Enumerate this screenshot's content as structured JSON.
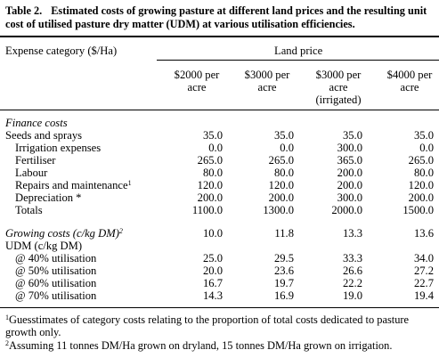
{
  "caption": {
    "number": "Table 2.",
    "text": "Estimated costs of growing pasture at different land prices and the resulting unit cost of utilised pasture dry matter (UDM) at various utilisation efficiencies."
  },
  "header": {
    "row_label": "Expense category ($/Ha)",
    "group_label": "Land price",
    "columns": [
      [
        "$2000  per",
        "acre"
      ],
      [
        "$3000  per",
        "acre"
      ],
      [
        "$3000  per",
        "acre",
        "(irrigated)"
      ],
      [
        "$4000  per",
        "acre"
      ]
    ]
  },
  "rows": [
    {
      "label": "Finance costs",
      "italic": true,
      "indent": false,
      "values": [
        "",
        "",
        "",
        ""
      ]
    },
    {
      "label": "Seeds and sprays",
      "indent": false,
      "values": [
        "35.0",
        "35.0",
        "35.0",
        "35.0"
      ]
    },
    {
      "label": "Irrigation expenses",
      "indent": true,
      "values": [
        "0.0",
        "0.0",
        "300.0",
        "0.0"
      ]
    },
    {
      "label": "Fertiliser",
      "indent": true,
      "values": [
        "265.0",
        "265.0",
        "365.0",
        "265.0"
      ]
    },
    {
      "label": "Labour",
      "indent": true,
      "values": [
        "80.0",
        "80.0",
        "200.0",
        "80.0"
      ]
    },
    {
      "label": "Repairs and maintenance",
      "sup": "1",
      "indent": true,
      "values": [
        "120.0",
        "120.0",
        "200.0",
        "120.0"
      ]
    },
    {
      "label": "Depreciation *",
      "indent": true,
      "values": [
        "200.0",
        "200.0",
        "300.0",
        "200.0"
      ]
    },
    {
      "label": "Totals",
      "indent": true,
      "values": [
        "1100.0",
        "1300.0",
        "2000.0",
        "1500.0"
      ]
    },
    {
      "label": "Growing costs  (c/kg DM)",
      "sup": "2",
      "italic": true,
      "indent": false,
      "gap": true,
      "values": [
        "10.0",
        "11.8",
        "13.3",
        "13.6"
      ]
    },
    {
      "label": "UDM (c/kg DM)",
      "indent": false,
      "values": [
        "",
        "",
        "",
        ""
      ]
    },
    {
      "label": "@ 40% utilisation",
      "indent": true,
      "values": [
        "25.0",
        "29.5",
        "33.3",
        "34.0"
      ]
    },
    {
      "label": "@ 50% utilisation",
      "indent": true,
      "values": [
        "20.0",
        "23.6",
        "26.6",
        "27.2"
      ]
    },
    {
      "label": "@ 60% utilisation",
      "indent": true,
      "values": [
        "16.7",
        "19.7",
        "22.2",
        "22.7"
      ]
    },
    {
      "label": "@ 70% utilisation",
      "indent": true,
      "values": [
        "14.3",
        "16.9",
        "19.0",
        "19.4"
      ]
    }
  ],
  "footnotes": [
    {
      "mark": "1",
      "text": "Guesstimates of category costs relating to the proportion of total costs dedicated to pasture growth only."
    },
    {
      "mark": "2",
      "text": "Assuming 11 tonnes DM/Ha grown on dryland, 15 tonnes DM/Ha grown on irrigation."
    }
  ]
}
